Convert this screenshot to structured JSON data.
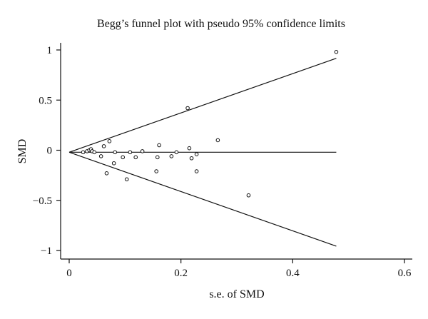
{
  "chart_data": {
    "type": "scatter",
    "title": "Begg’s funnel plot with pseudo 95% confidence limits",
    "xlabel": "s.e. of SMD",
    "ylabel": "SMD",
    "xlim": [
      0,
      0.6
    ],
    "ylim": [
      -1,
      1
    ],
    "x_ticks": [
      {
        "value": 0,
        "label": "0"
      },
      {
        "value": 0.2,
        "label": "0.2"
      },
      {
        "value": 0.4,
        "label": "0.4"
      },
      {
        "value": 0.6,
        "label": "0.6"
      }
    ],
    "y_ticks": [
      {
        "value": 1,
        "label": "1"
      },
      {
        "value": 0.5,
        "label": "0.5"
      },
      {
        "value": 0,
        "label": "0"
      },
      {
        "value": -0.5,
        "label": "−0.5"
      },
      {
        "value": -1,
        "label": "−1"
      }
    ],
    "pooled_effect": -0.02,
    "funnel_max_se": 0.478,
    "points": [
      {
        "x": 0.025,
        "y": -0.02
      },
      {
        "x": 0.032,
        "y": -0.01
      },
      {
        "x": 0.036,
        "y": 0.0
      },
      {
        "x": 0.039,
        "y": 0.01
      },
      {
        "x": 0.041,
        "y": -0.01
      },
      {
        "x": 0.045,
        "y": -0.02
      },
      {
        "x": 0.057,
        "y": -0.06
      },
      {
        "x": 0.062,
        "y": 0.04
      },
      {
        "x": 0.067,
        "y": -0.23
      },
      {
        "x": 0.072,
        "y": 0.09
      },
      {
        "x": 0.08,
        "y": -0.13
      },
      {
        "x": 0.082,
        "y": -0.02
      },
      {
        "x": 0.096,
        "y": -0.07
      },
      {
        "x": 0.103,
        "y": -0.29
      },
      {
        "x": 0.109,
        "y": -0.02
      },
      {
        "x": 0.119,
        "y": -0.07
      },
      {
        "x": 0.131,
        "y": -0.01
      },
      {
        "x": 0.156,
        "y": -0.21
      },
      {
        "x": 0.158,
        "y": -0.07
      },
      {
        "x": 0.161,
        "y": 0.05
      },
      {
        "x": 0.183,
        "y": -0.06
      },
      {
        "x": 0.192,
        "y": -0.02
      },
      {
        "x": 0.212,
        "y": 0.42
      },
      {
        "x": 0.215,
        "y": 0.02
      },
      {
        "x": 0.219,
        "y": -0.08
      },
      {
        "x": 0.228,
        "y": -0.04
      },
      {
        "x": 0.228,
        "y": -0.21
      },
      {
        "x": 0.266,
        "y": 0.1
      },
      {
        "x": 0.321,
        "y": -0.45
      },
      {
        "x": 0.478,
        "y": 0.98
      }
    ]
  }
}
